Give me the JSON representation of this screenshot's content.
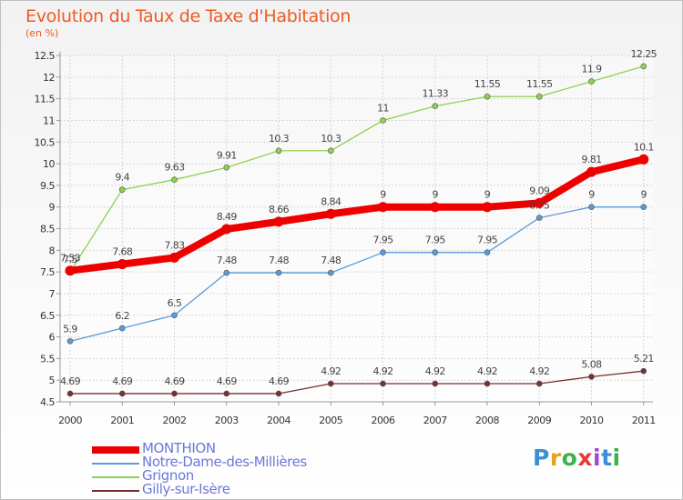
{
  "title": "Evolution du Taux de Taxe d'Habitation",
  "unit": "(en %)",
  "logo": {
    "text": "Proxiti",
    "colors": [
      "#3a8fd8",
      "#e8a21a",
      "#3ab44a",
      "#e83a3a",
      "#9a4ad8",
      "#3a8fd8",
      "#3ab44a"
    ]
  },
  "chart_data": {
    "type": "line",
    "x": [
      "2000",
      "2001",
      "2002",
      "2003",
      "2004",
      "2005",
      "2006",
      "2007",
      "2008",
      "2009",
      "2010",
      "2011"
    ],
    "ylim": [
      4.5,
      12.5
    ],
    "yticks": [
      "4.5",
      "5",
      "5.5",
      "6",
      "6.5",
      "7",
      "7.5",
      "8",
      "8.5",
      "9",
      "9.5",
      "10",
      "10.5",
      "11",
      "11.5",
      "12",
      "12.5"
    ],
    "grid": true,
    "legend_position": "bottom-left",
    "series": [
      {
        "name": "MONTHION",
        "color": "#ee0000",
        "values": [
          7.53,
          7.68,
          7.83,
          8.49,
          8.66,
          8.84,
          9,
          9,
          9,
          9.09,
          9.81,
          10.1
        ],
        "labels": [
          "7.53",
          "7.68",
          "7.83",
          "8.49",
          "8.66",
          "8.84",
          "9",
          "9",
          "9",
          "9.09",
          "9.81",
          "10.1"
        ]
      },
      {
        "name": "Notre-Dame-des-Millières",
        "color": "#5b9bd5",
        "values": [
          5.9,
          6.2,
          6.5,
          7.48,
          7.48,
          7.48,
          7.95,
          7.95,
          7.95,
          8.75,
          9,
          9
        ],
        "labels": [
          "5.9",
          "6.2",
          "6.5",
          "7.48",
          "7.48",
          "7.48",
          "7.95",
          "7.95",
          "7.95",
          "8.75",
          "9",
          "9"
        ]
      },
      {
        "name": "Grignon",
        "color": "#8ed14f",
        "values": [
          7.5,
          9.4,
          9.63,
          9.91,
          10.3,
          10.3,
          11,
          11.33,
          11.55,
          11.55,
          11.9,
          12.25
        ],
        "labels": [
          "7.5",
          "9.4",
          "9.63",
          "9.91",
          "10.3",
          "10.3",
          "11",
          "11.33",
          "11.55",
          "11.55",
          "11.9",
          "12.25"
        ]
      },
      {
        "name": "Gilly-sur-Isère",
        "color": "#7b2f2f",
        "values": [
          4.69,
          4.69,
          4.69,
          4.69,
          4.69,
          4.92,
          4.92,
          4.92,
          4.92,
          4.92,
          5.08,
          5.21
        ],
        "labels": [
          "4.69",
          "4.69",
          "4.69",
          "4.69",
          "4.69",
          "4.92",
          "4.92",
          "4.92",
          "4.92",
          "4.92",
          "5.08",
          "5.21"
        ]
      }
    ]
  }
}
